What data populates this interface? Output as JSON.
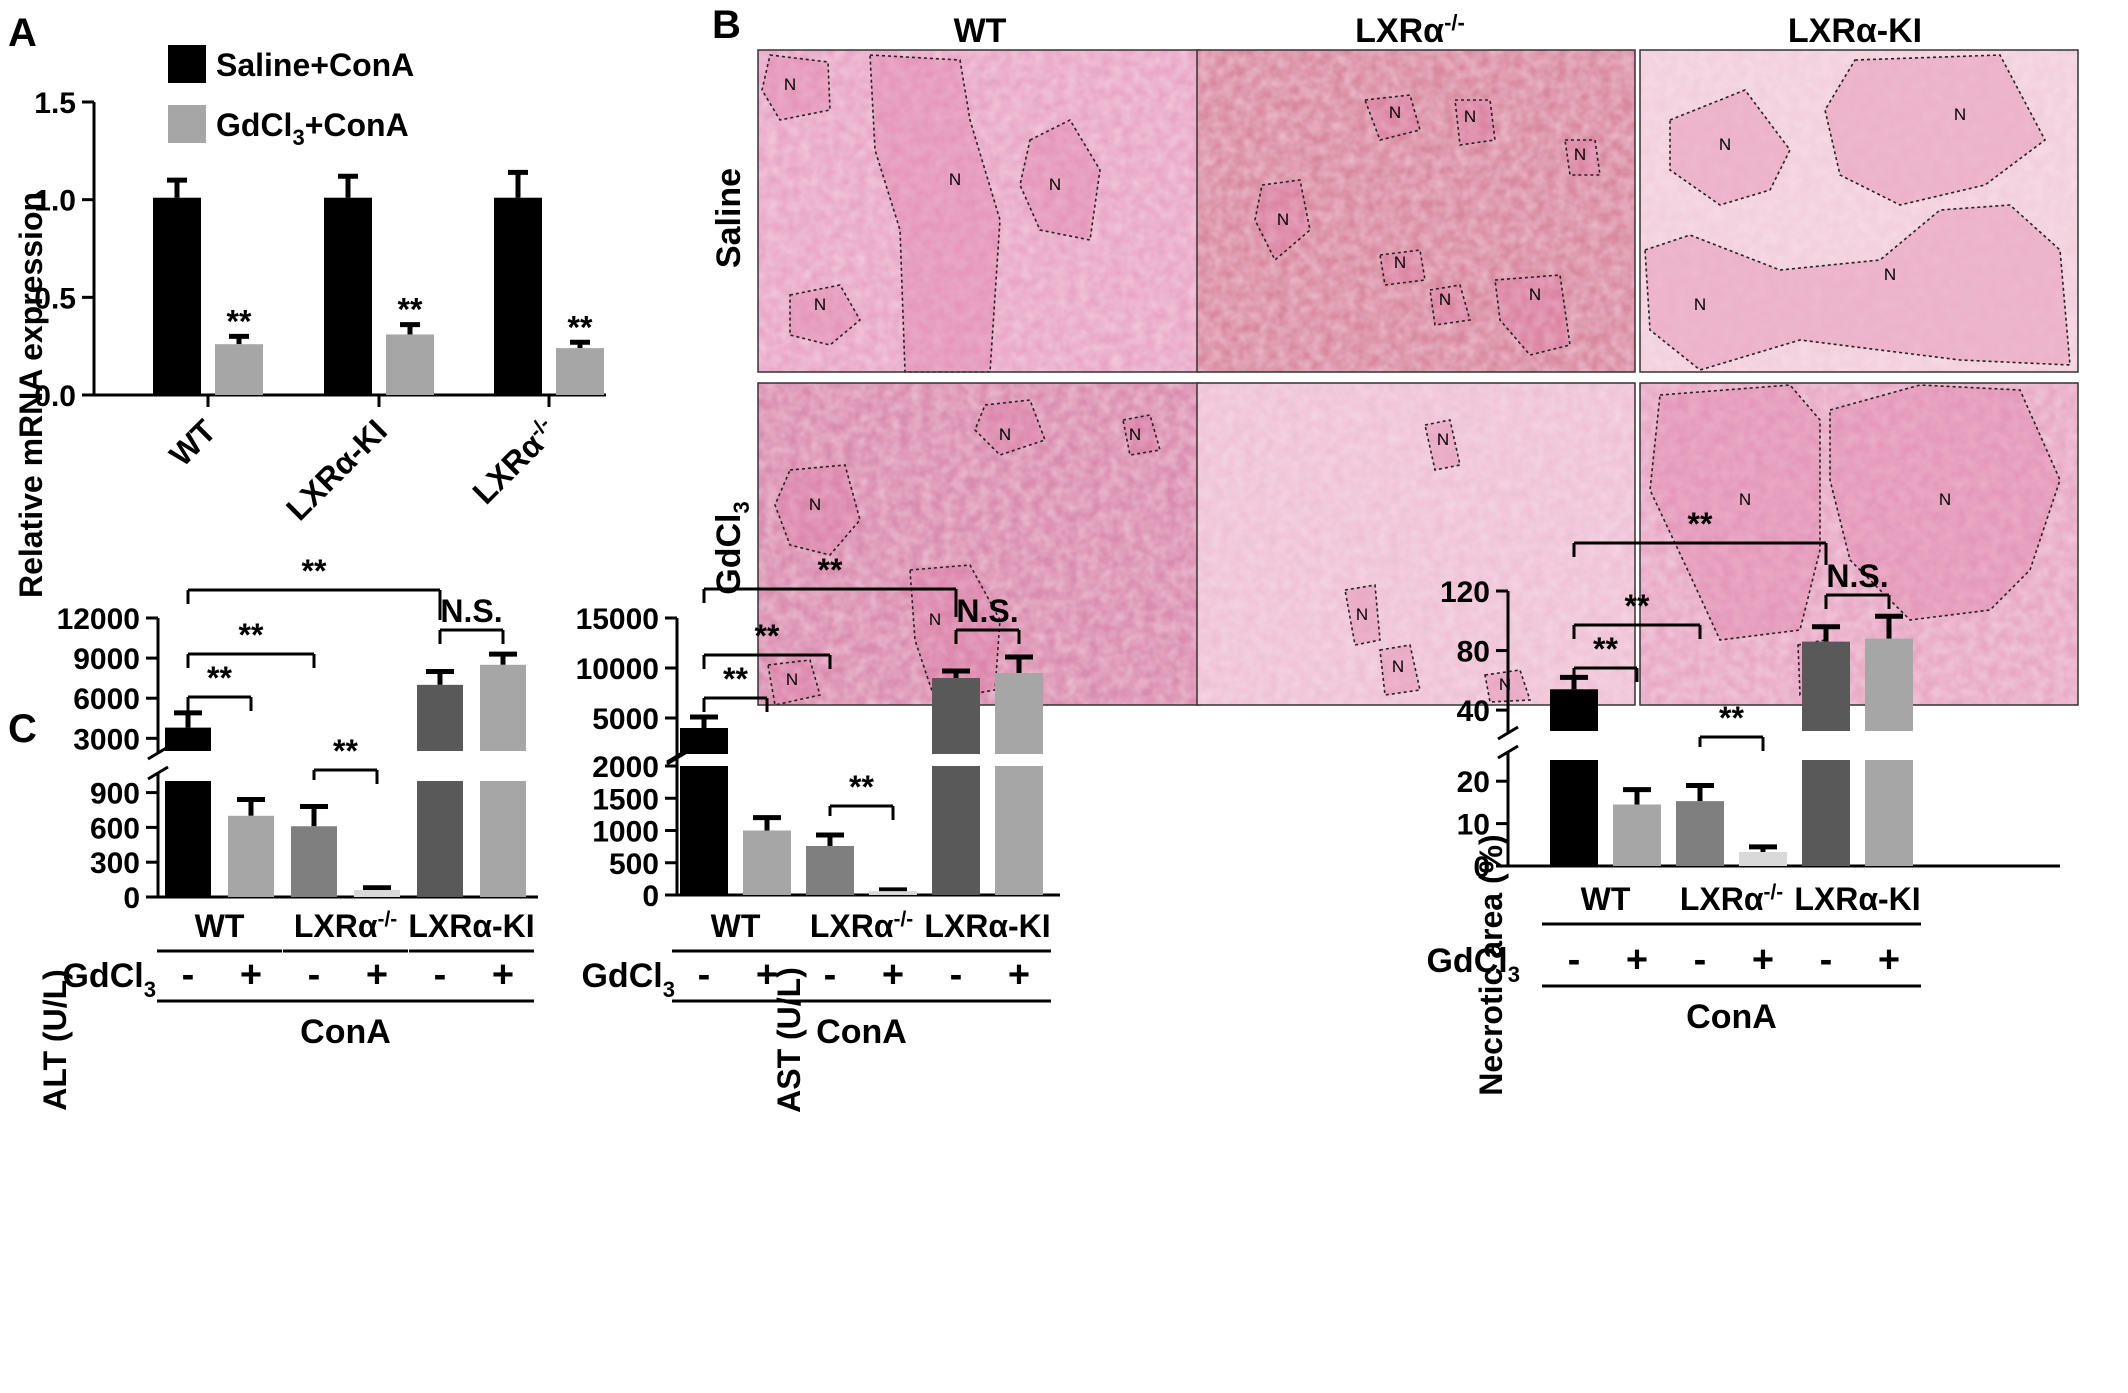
{
  "panels": {
    "A": {
      "letter": "A",
      "legend": [
        {
          "label": "Saline+ConA",
          "color": "#000000"
        },
        {
          "label": "GdCl",
          "sub": "3",
          "tail": "+ConA",
          "color": "#a6a6a6"
        }
      ],
      "ylabel": "Relative mRNA expression",
      "yticks": [
        "0.0",
        "0.5",
        "1.0",
        "1.5"
      ],
      "xlabels": [
        {
          "text": "WT"
        },
        {
          "text": "LXRα-KI"
        },
        {
          "text": "LXRα",
          "sup": "-/-"
        }
      ],
      "star": "**"
    },
    "B": {
      "letter": "B",
      "col_headers": [
        {
          "text": "WT"
        },
        {
          "text": "LXRα",
          "sup": "-/-"
        },
        {
          "text": "LXRα-KI"
        }
      ],
      "row_labels": [
        {
          "text": "Saline"
        },
        {
          "text": "GdCl",
          "sub": "3"
        }
      ],
      "region_label": "N"
    },
    "C": {
      "letter": "C",
      "alt": {
        "ylabel": "ALT (U/L)",
        "yticks_low": [
          "0",
          "300",
          "600",
          "900"
        ],
        "yticks_high": [
          "3000",
          "6000",
          "9000",
          "12000"
        ]
      },
      "ast": {
        "ylabel": "AST (U/L)",
        "yticks_low": [
          "0",
          "500",
          "1000",
          "1500",
          "2000"
        ],
        "yticks_high": [
          "5000",
          "10000",
          "15000"
        ]
      },
      "necrosis": {
        "ylabel": "Necrotic area (%)",
        "yticks_low": [
          "0",
          "10",
          "20"
        ],
        "yticks_high": [
          "40",
          "80",
          "120"
        ]
      },
      "groups": [
        {
          "text": "WT"
        },
        {
          "text": "LXRα",
          "sup": "-/-"
        },
        {
          "text": "LXRα-KI"
        }
      ],
      "treatment_label": "GdCl",
      "treatment_sub": "3",
      "minus": "-",
      "plus": "+",
      "cona": "ConA",
      "sig": "**",
      "ns": "N.S."
    }
  },
  "chart_data": [
    {
      "type": "bar",
      "panel": "A",
      "ylabel": "Relative mRNA expression",
      "ylim": [
        0,
        1.5
      ],
      "categories": [
        "WT",
        "LXRα-KI",
        "LXRα-/-"
      ],
      "series": [
        {
          "name": "Saline+ConA",
          "values": [
            1.01,
            1.01,
            1.01
          ],
          "errors": [
            0.09,
            0.11,
            0.13
          ],
          "color": "#000000"
        },
        {
          "name": "GdCl3+ConA",
          "values": [
            0.26,
            0.31,
            0.24
          ],
          "errors": [
            0.04,
            0.05,
            0.03
          ],
          "color": "#a6a6a6"
        }
      ],
      "significance": [
        "**",
        "**",
        "**"
      ]
    },
    {
      "type": "bar",
      "panel": "C-ALT",
      "ylabel": "ALT (U/L)",
      "axis_break": [
        1000,
        3000
      ],
      "ylim": [
        0,
        12000
      ],
      "categories": [
        "WT -",
        "WT +",
        "LXRα-/- -",
        "LXRα-/- +",
        "LXRα-KI -",
        "LXRα-KI +"
      ],
      "values": [
        3800,
        700,
        610,
        60,
        7000,
        8500
      ],
      "errors": [
        1100,
        140,
        170,
        20,
        1000,
        800
      ],
      "colors": [
        "#000000",
        "#a6a6a6",
        "#7f7f7f",
        "#d9d9d9",
        "#595959",
        "#a6a6a6"
      ]
    },
    {
      "type": "bar",
      "panel": "C-AST",
      "ylabel": "AST (U/L)",
      "axis_break": [
        2000,
        3000
      ],
      "ylim": [
        0,
        15000
      ],
      "categories": [
        "WT -",
        "WT +",
        "LXRα-/- -",
        "LXRα-/- +",
        "LXRα-KI -",
        "LXRα-KI +"
      ],
      "values": [
        4000,
        1000,
        760,
        60,
        9000,
        9500
      ],
      "errors": [
        1100,
        200,
        170,
        20,
        700,
        1600
      ],
      "colors": [
        "#000000",
        "#a6a6a6",
        "#7f7f7f",
        "#d9d9d9",
        "#595959",
        "#a6a6a6"
      ]
    },
    {
      "type": "bar",
      "panel": "C-Necrosis",
      "ylabel": "Necrotic area (%)",
      "axis_break": [
        25,
        35
      ],
      "ylim": [
        0,
        120
      ],
      "categories": [
        "WT -",
        "WT +",
        "LXRα-/- -",
        "LXRα-/- +",
        "LXRα-KI -",
        "LXRα-KI +"
      ],
      "values": [
        54,
        14.5,
        15.3,
        3.3,
        86,
        88
      ],
      "errors": [
        8,
        3.5,
        3.7,
        1.2,
        10,
        15
      ],
      "colors": [
        "#000000",
        "#a6a6a6",
        "#7f7f7f",
        "#d9d9d9",
        "#595959",
        "#a6a6a6"
      ]
    }
  ]
}
